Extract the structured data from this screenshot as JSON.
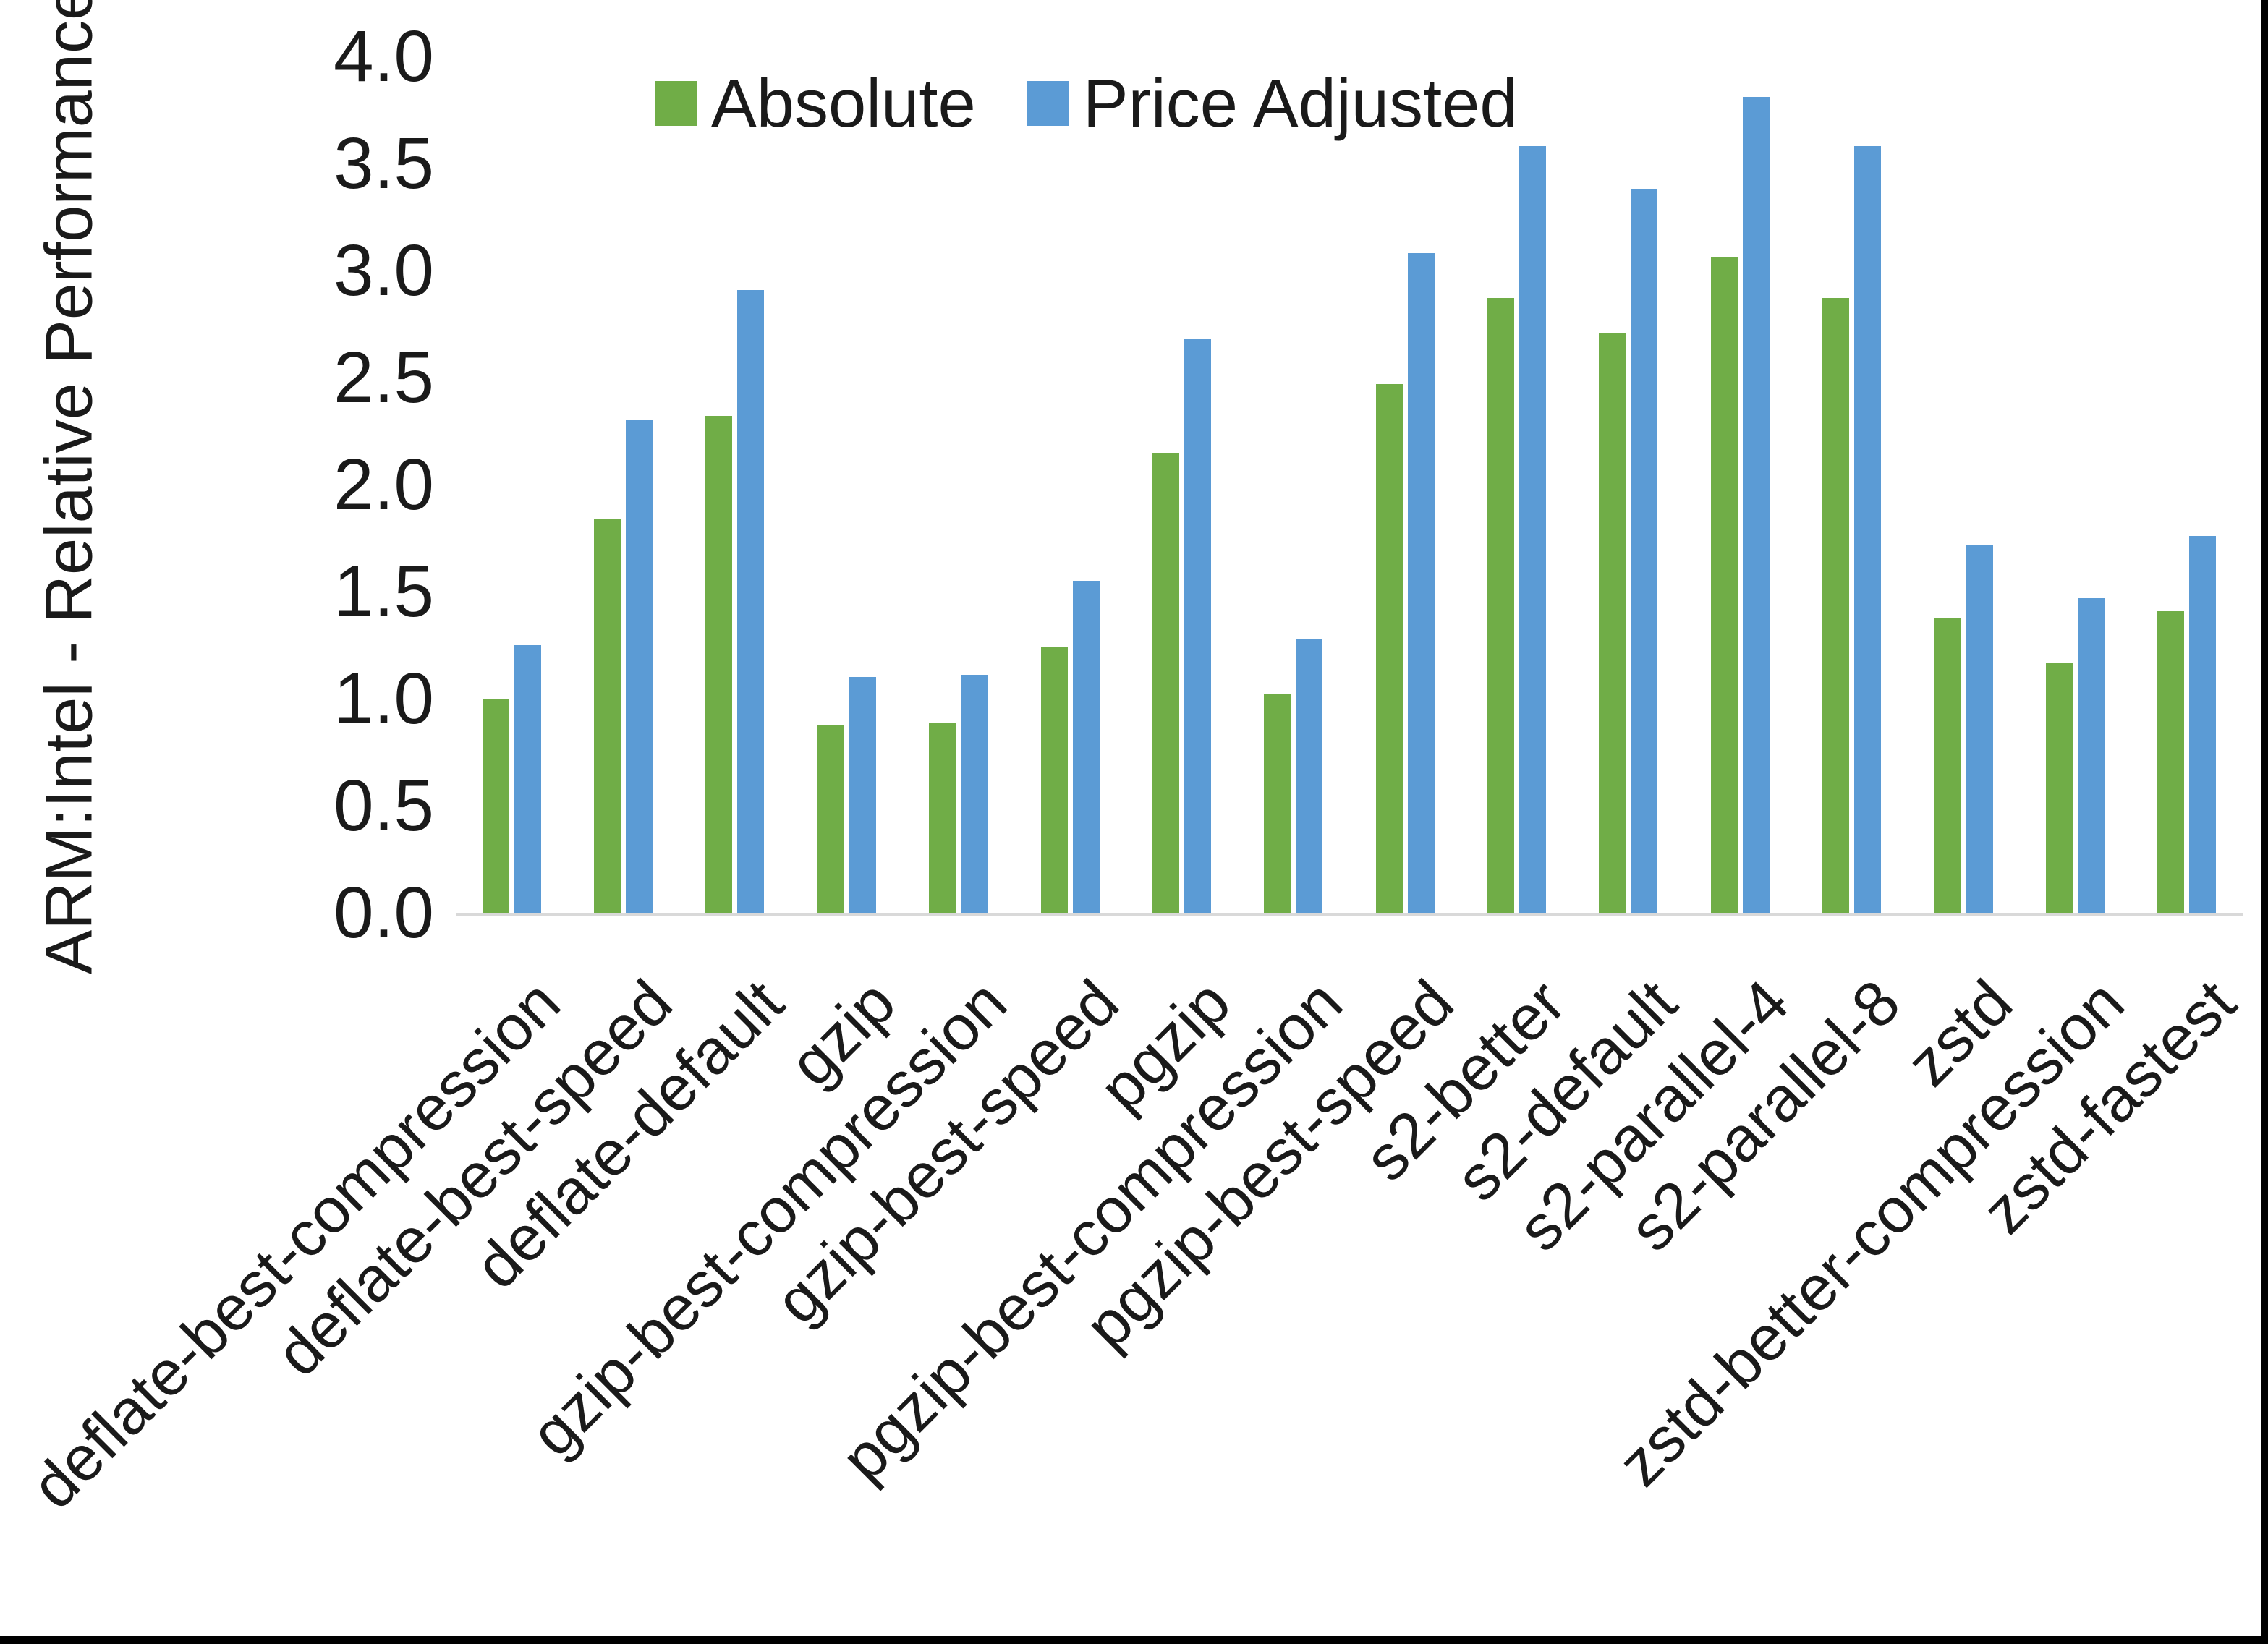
{
  "chart_data": {
    "type": "bar",
    "title": "",
    "xlabel": "",
    "ylabel": "ARM:Intel - Relative Performance",
    "ylim": [
      0.0,
      4.0
    ],
    "ytick_step": 0.5,
    "yticks": [
      "4.0",
      "3.5",
      "3.0",
      "2.5",
      "2.0",
      "1.5",
      "1.0",
      "0.5",
      "0.0"
    ],
    "grid": false,
    "legend_position": "top-center",
    "axis_line_color": "#d9d9d9",
    "categories": [
      "deflate-best-compression",
      "deflate-best-speed",
      "deflate-default",
      "gzip",
      "gzip-best-compression",
      "gzip-best-speed",
      "pgzip",
      "pgzip-best-compression",
      "pgzip-best-speed",
      "s2-better",
      "s2-default",
      "s2-parallel-4",
      "s2-parallel-8",
      "zstd",
      "zstd-better-compression",
      "zstd-fastest"
    ],
    "series": [
      {
        "name": "Absolute",
        "color": "#70AD47",
        "values": [
          1.0,
          1.84,
          2.32,
          0.88,
          0.89,
          1.24,
          2.15,
          1.02,
          2.47,
          2.87,
          2.71,
          3.06,
          2.87,
          1.38,
          1.17,
          1.41
        ]
      },
      {
        "name": "Price Adjusted",
        "color": "#5B9BD5",
        "values": [
          1.25,
          2.3,
          2.91,
          1.1,
          1.11,
          1.55,
          2.68,
          1.28,
          3.08,
          3.58,
          3.38,
          3.81,
          3.58,
          1.72,
          1.47,
          1.76
        ]
      }
    ]
  }
}
